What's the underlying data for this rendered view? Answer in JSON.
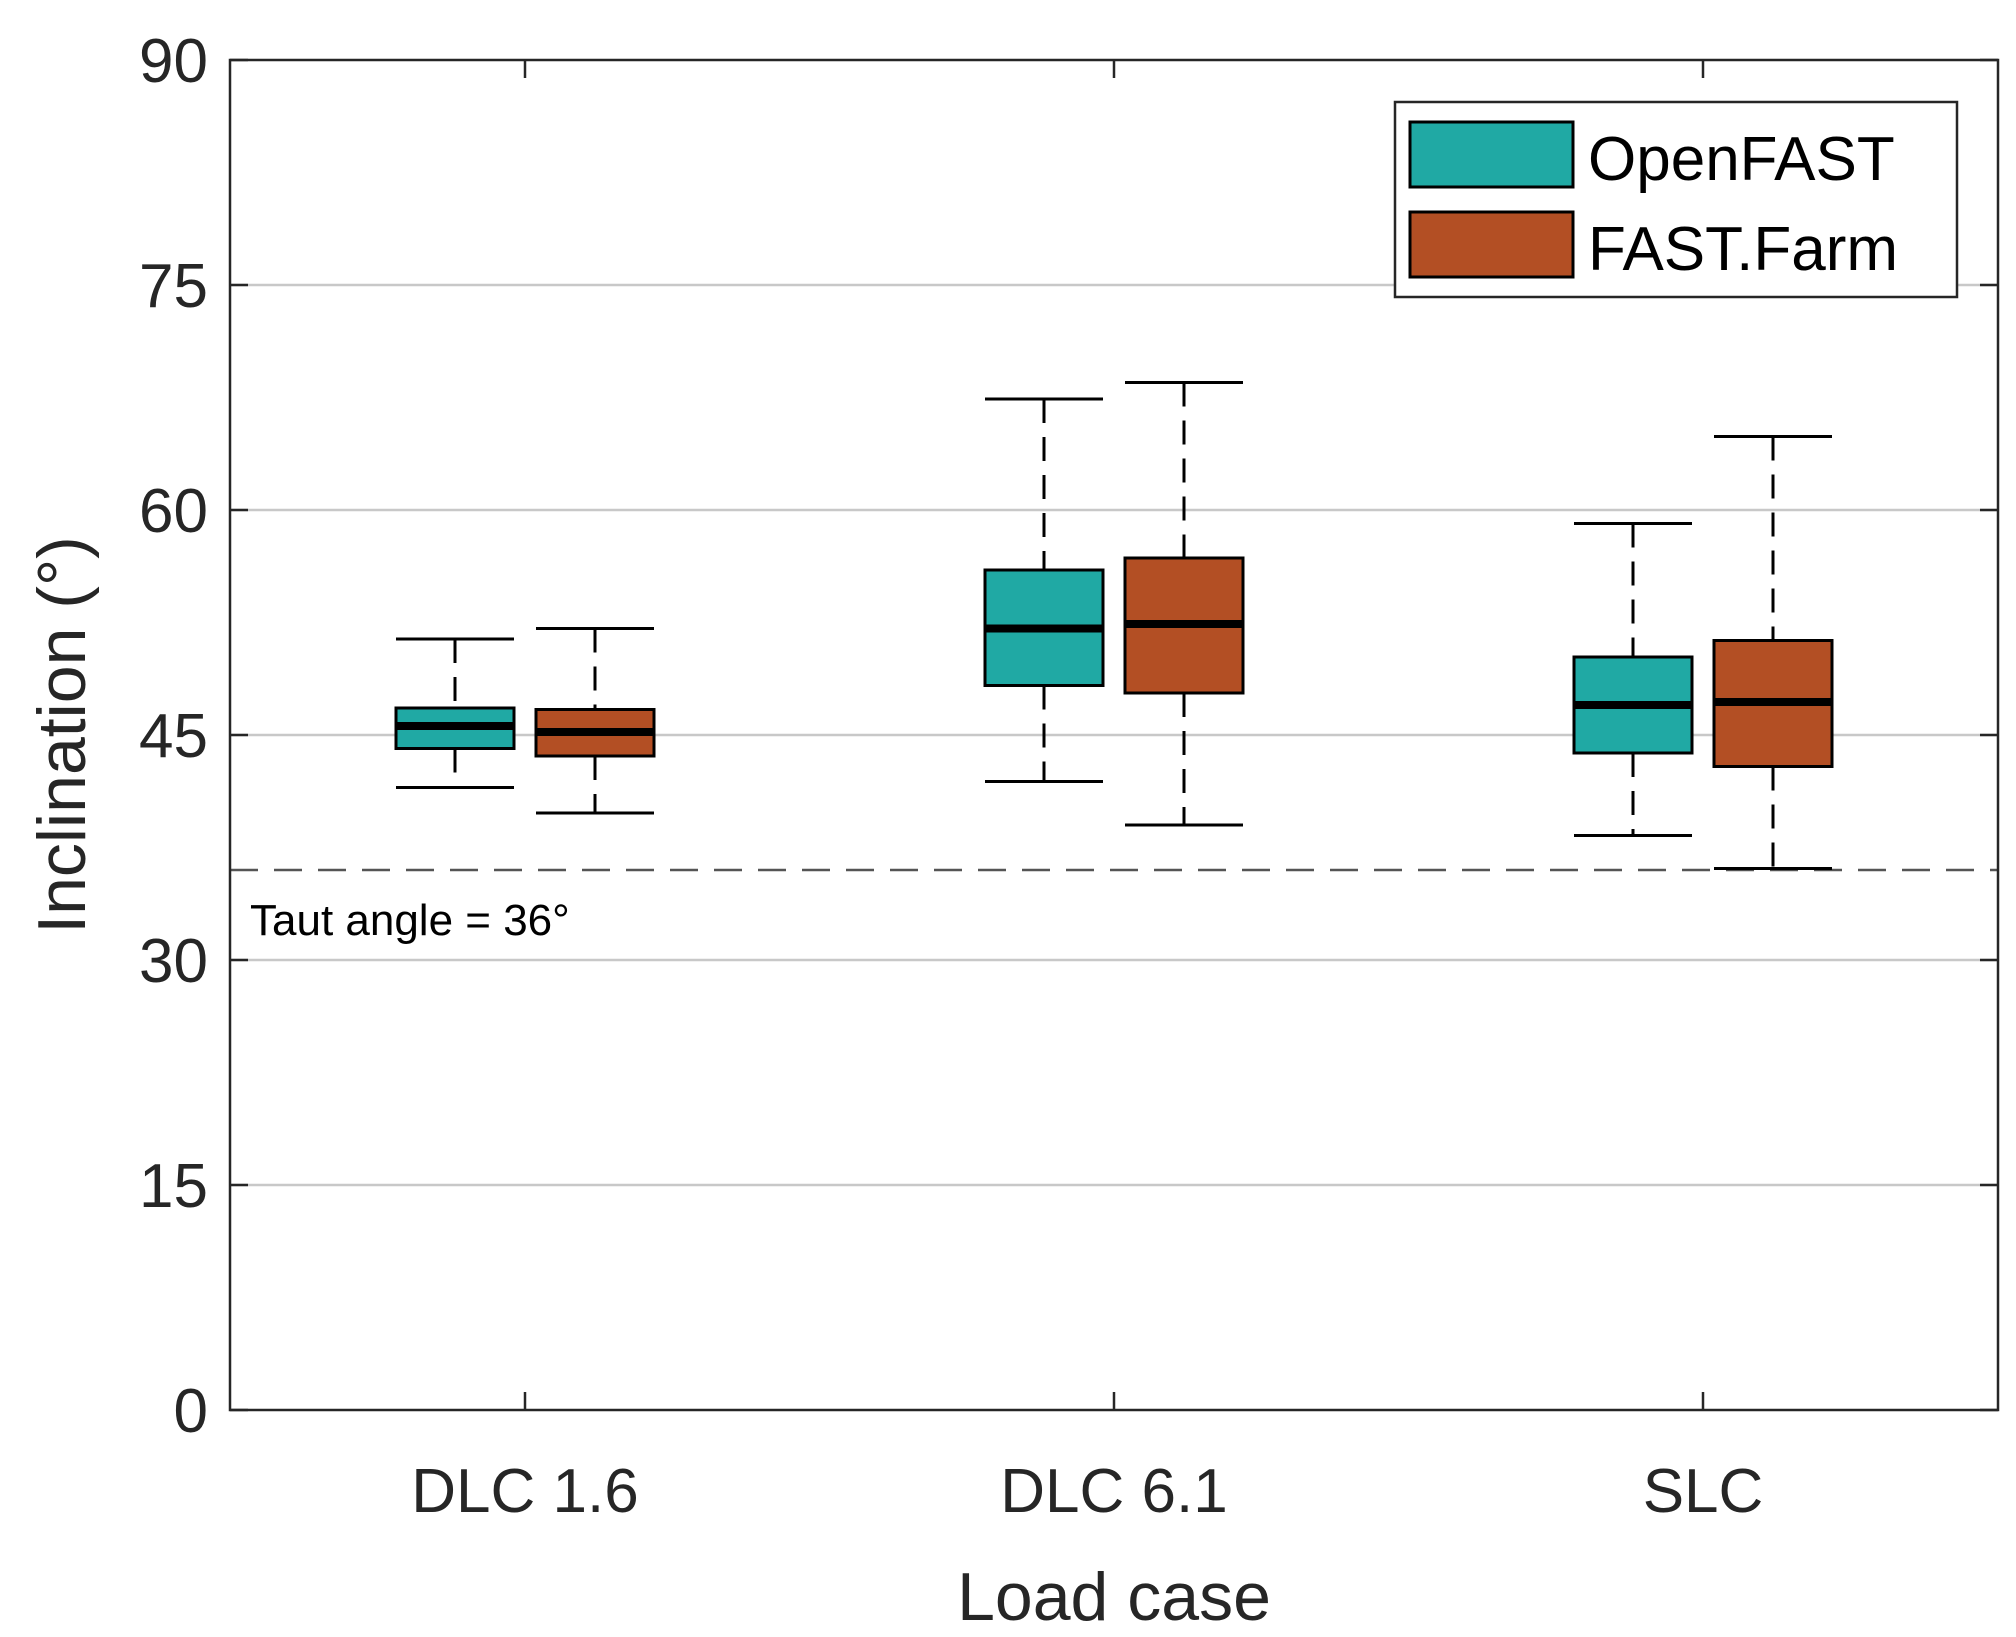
{
  "chart_data": {
    "type": "box",
    "title": "",
    "xlabel": "Load case",
    "ylabel": "Inclination (°)",
    "ylim": [
      0,
      90
    ],
    "yticks": [
      0,
      15,
      30,
      45,
      60,
      75,
      90
    ],
    "ytick_labels": [
      "0",
      "15",
      "30",
      "45",
      "60",
      "75",
      "90"
    ],
    "grid": "horizontal",
    "legend_position": "top-right",
    "categories": [
      "DLC 1.6",
      "DLC 6.1",
      "SLC"
    ],
    "series": [
      {
        "name": "OpenFAST",
        "color": "#20a9a4",
        "boxes": [
          {
            "min": 41.5,
            "q1": 44.1,
            "median": 45.6,
            "q3": 46.8,
            "max": 51.4
          },
          {
            "min": 41.9,
            "q1": 48.3,
            "median": 52.1,
            "q3": 56.0,
            "max": 67.4
          },
          {
            "min": 38.3,
            "q1": 43.8,
            "median": 47.0,
            "q3": 50.2,
            "max": 59.1
          }
        ]
      },
      {
        "name": "FAST.Farm",
        "color": "#b34f24",
        "boxes": [
          {
            "min": 39.8,
            "q1": 43.6,
            "median": 45.2,
            "q3": 46.7,
            "max": 52.1
          },
          {
            "min": 39.0,
            "q1": 47.8,
            "median": 52.4,
            "q3": 56.8,
            "max": 68.5
          },
          {
            "min": 36.1,
            "q1": 42.9,
            "median": 47.2,
            "q3": 51.3,
            "max": 64.9
          }
        ]
      }
    ],
    "reference_line": {
      "y": 36,
      "label": "Taut angle = 36°",
      "style": "dashed"
    }
  }
}
